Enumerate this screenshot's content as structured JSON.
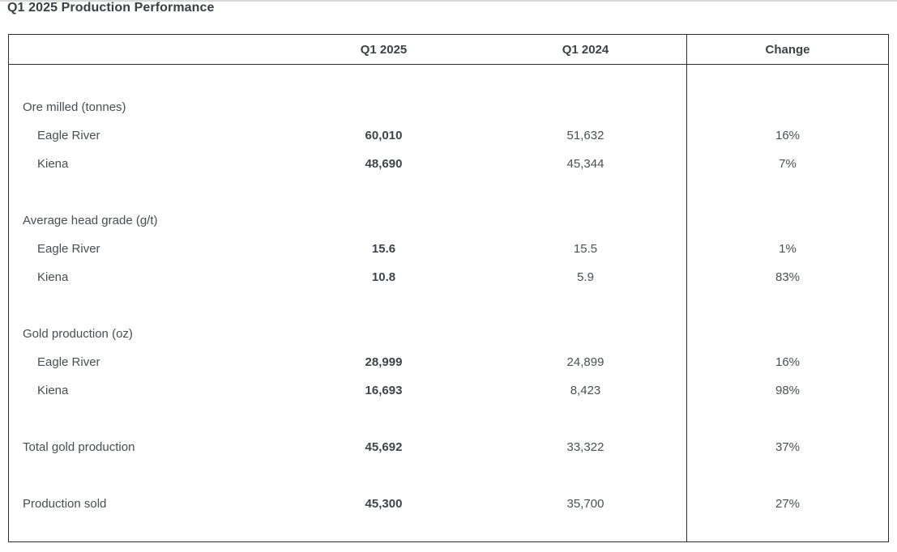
{
  "title": "Q1 2025 Production Performance",
  "colors": {
    "text": "#484d53",
    "bold_text": "#3f444b",
    "border": "#2d2d2d"
  },
  "table": {
    "columns": {
      "metric": "",
      "q1_2025": "Q1 2025",
      "q1_2024": "Q1 2024",
      "change": "Change"
    },
    "rows": [
      {
        "label": "Ore milled (tonnes)",
        "q1_2025": "",
        "q1_2024": "",
        "change": ""
      },
      {
        "label": "Eagle River",
        "q1_2025": "60,010",
        "q1_2024": "51,632",
        "change": "16%"
      },
      {
        "label": "Kiena",
        "q1_2025": "48,690",
        "q1_2024": "45,344",
        "change": "7%"
      },
      {
        "label": "Average head grade (g/t)",
        "q1_2025": "",
        "q1_2024": "",
        "change": ""
      },
      {
        "label": "Eagle River",
        "q1_2025": "15.6",
        "q1_2024": "15.5",
        "change": "1%"
      },
      {
        "label": "Kiena",
        "q1_2025": "10.8",
        "q1_2024": "5.9",
        "change": "83%"
      },
      {
        "label": "Gold production (oz)",
        "q1_2025": "",
        "q1_2024": "",
        "change": ""
      },
      {
        "label": "Eagle River",
        "q1_2025": "28,999",
        "q1_2024": "24,899",
        "change": "16%"
      },
      {
        "label": "Kiena",
        "q1_2025": "16,693",
        "q1_2024": "8,423",
        "change": "98%"
      },
      {
        "label": "Total gold production",
        "q1_2025": "45,692",
        "q1_2024": "33,322",
        "change": "37%"
      },
      {
        "label": "Production sold",
        "q1_2025": "45,300",
        "q1_2024": "35,700",
        "change": "27%"
      }
    ]
  }
}
